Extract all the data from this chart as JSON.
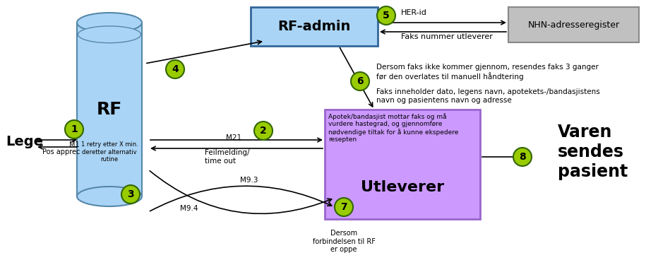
{
  "bg_color": "#ffffff",
  "rf_cylinder_color": "#aad4f5",
  "rf_cylinder_edge": "#5588aa",
  "rf_admin_box_color": "#aad4f5",
  "rf_admin_box_edge": "#336699",
  "nhn_box_color": "#c0c0c0",
  "nhn_box_edge": "#888888",
  "utleverer_box_color": "#cc99ff",
  "utleverer_box_edge": "#9966cc",
  "green_circle_color": "#99cc00",
  "green_circle_edge": "#336600",
  "note_text_1": "Dersom faks ikke kommer gjennom, resendes faks 3 ganger\nfør den overlates til manuell håndtering",
  "note_text_2": "Faks inneholder dato, legens navn, apotekets-/bandasjistens\nnavn og pasientens navn og adresse",
  "utleverer_note": "Apotek/bandasjist mottar faks og må\nvurdere hastegrad, og gjennomføre\nnødvendige tiltak for å kunne ekspedere\nresepten",
  "m9_4_note": "Dersom\nforbindelsen til RF\ner oppe"
}
